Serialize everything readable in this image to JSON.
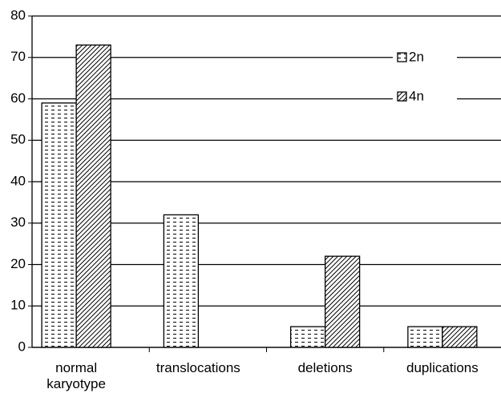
{
  "chart_data": {
    "type": "bar",
    "categories": [
      "normal karyotype",
      "translocations",
      "deletions",
      "duplications"
    ],
    "series": [
      {
        "name": "2n",
        "color": "#000000",
        "pattern": "dots",
        "values": [
          59,
          32,
          5,
          5
        ]
      },
      {
        "name": "4n",
        "color": "#000000",
        "pattern": "hatch",
        "values": [
          73,
          0,
          22,
          5
        ]
      }
    ],
    "ylim": [
      0,
      80
    ],
    "yticks": [
      0,
      10,
      20,
      30,
      40,
      50,
      60,
      70,
      80
    ],
    "grid": true,
    "legend": "upper right"
  }
}
